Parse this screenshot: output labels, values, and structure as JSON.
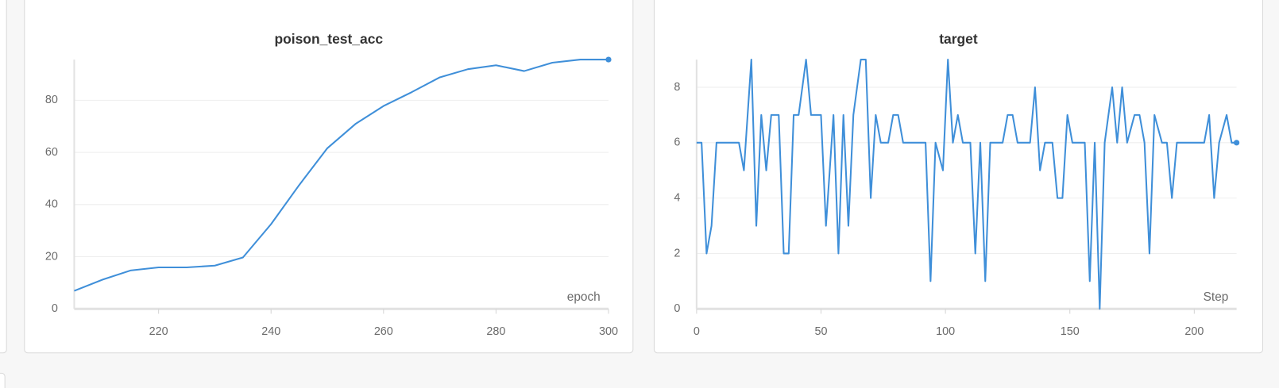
{
  "chart_data": [
    {
      "type": "line",
      "title": "poison_test_acc",
      "x_label": "epoch",
      "x": [
        205,
        210,
        215,
        220,
        225,
        230,
        235,
        240,
        245,
        250,
        255,
        260,
        265,
        270,
        275,
        280,
        285,
        290,
        295,
        300
      ],
      "values": [
        6.9,
        11.2,
        14.7,
        15.9,
        15.9,
        16.6,
        19.7,
        32.5,
        47.5,
        61.6,
        70.9,
        77.8,
        83.1,
        88.8,
        91.9,
        93.4,
        91.2,
        94.4,
        95.6,
        95.6
      ],
      "color": "#3f8fd9",
      "xlim": [
        205,
        300
      ],
      "ylim": [
        0,
        95.6
      ],
      "xticks": [
        220,
        240,
        260,
        280,
        300
      ],
      "yticks": [
        0,
        20,
        40,
        60,
        80
      ],
      "grid": true
    },
    {
      "type": "line",
      "title": "target",
      "x_label": "Step",
      "x": [
        0,
        2,
        4,
        6,
        8,
        17,
        19,
        22,
        24,
        26,
        28,
        30,
        33,
        35,
        37,
        39,
        41,
        44,
        46,
        50,
        52,
        55,
        57,
        59,
        61,
        63,
        66,
        68,
        70,
        72,
        74,
        77,
        79,
        81,
        83,
        92,
        94,
        96,
        99,
        101,
        103,
        105,
        107,
        110,
        112,
        114,
        116,
        118,
        123,
        125,
        127,
        129,
        134,
        136,
        138,
        140,
        143,
        145,
        147,
        149,
        151,
        156,
        158,
        160,
        162,
        164,
        167,
        169,
        171,
        173,
        176,
        178,
        180,
        182,
        184,
        187,
        189,
        191,
        193,
        204,
        206,
        208,
        210,
        213,
        215,
        217
      ],
      "values": [
        6,
        6,
        2,
        3,
        6,
        6,
        5,
        9,
        3,
        7,
        5,
        7,
        7,
        2,
        2,
        7,
        7,
        9,
        7,
        7,
        3,
        7,
        2,
        7,
        3,
        7,
        9,
        9,
        4,
        7,
        6,
        6,
        7,
        7,
        6,
        6,
        1,
        6,
        5,
        9,
        6,
        7,
        6,
        6,
        2,
        6,
        1,
        6,
        6,
        7,
        7,
        6,
        6,
        8,
        5,
        6,
        6,
        4,
        4,
        7,
        6,
        6,
        1,
        6,
        0,
        6,
        8,
        6,
        8,
        6,
        7,
        7,
        6,
        2,
        7,
        6,
        6,
        4,
        6,
        6,
        7,
        4,
        6,
        7,
        6,
        6
      ],
      "color": "#3f8fd9",
      "xlim": [
        0,
        217
      ],
      "ylim": [
        0,
        9
      ],
      "xticks": [
        0,
        50,
        100,
        150,
        200
      ],
      "yticks": [
        0,
        2,
        4,
        6,
        8
      ],
      "grid": true
    }
  ]
}
